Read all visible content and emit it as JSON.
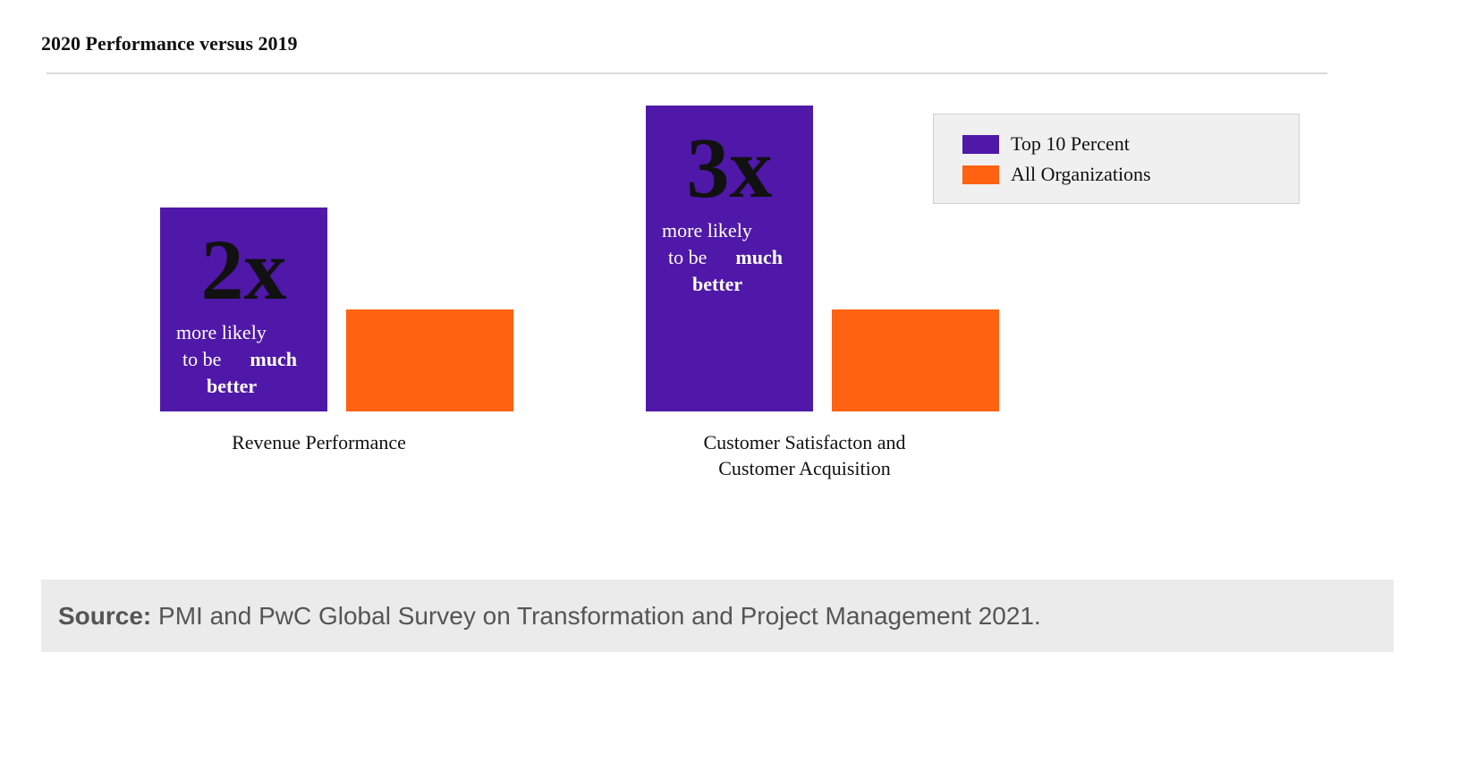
{
  "header": {
    "title": "2020 Performance versus 2019"
  },
  "chart_data": {
    "type": "bar",
    "title": "2020 Performance versus 2019",
    "categories": [
      "Revenue Performance",
      "Customer Satisfacton and Customer Acquisition"
    ],
    "category_lines": [
      [
        "Revenue Performance"
      ],
      [
        "Customer Satisfacton and",
        "Customer Acquisition"
      ]
    ],
    "series": [
      {
        "name": "Top 10 Percent",
        "color": "#4f18a8",
        "values": [
          2,
          3
        ]
      },
      {
        "name": "All Organizations",
        "color": "#ff6210",
        "values": [
          1,
          1
        ]
      }
    ],
    "annotations": [
      {
        "big": "2x",
        "line1": "more likely",
        "line2a": "to be",
        "line2b": "much",
        "line3": "better"
      },
      {
        "big": "3x",
        "line1": "more likely",
        "line2a": "to be",
        "line2b": "much",
        "line3": "better"
      }
    ],
    "legend_position": "top-right",
    "grid": false,
    "xlabel": "",
    "ylabel": ""
  },
  "source": {
    "label": "Source:",
    "text": "PMI and PwC Global Survey on Transformation and Project Management 2021."
  }
}
